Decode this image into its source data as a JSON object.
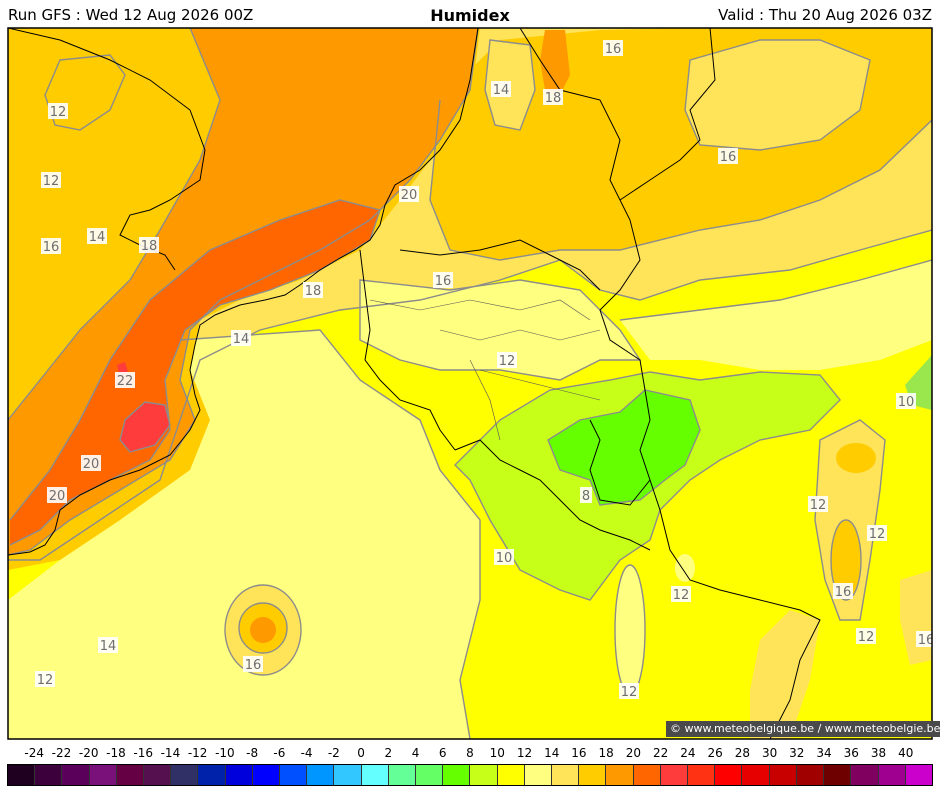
{
  "header": {
    "run": "Run GFS : Wed 12 Aug 2026 00Z",
    "title": "Humidex",
    "valid": "Valid : Thu 20 Aug 2026 03Z"
  },
  "credit": "© www.meteobelgique.be / www.meteobelgie.be",
  "colors": {
    "c10": "#c8ff19",
    "c12": "#ffff00",
    "c14": "#ffff80",
    "c16": "#ffe45a",
    "c18": "#ffcc00",
    "c20": "#ff9900",
    "c22": "#ff6600",
    "c24": "#ff3c3c",
    "c8": "#66ff00",
    "c6": "#99e64d",
    "contour": "#8c8c8c",
    "border": "#000000"
  },
  "contour_labels": [
    {
      "text": "12"
    },
    {
      "text": "12"
    },
    {
      "text": "14"
    },
    {
      "text": "16"
    },
    {
      "text": "18"
    },
    {
      "text": "14"
    },
    {
      "text": "18"
    },
    {
      "text": "16"
    },
    {
      "text": "16"
    },
    {
      "text": "20"
    },
    {
      "text": "16"
    },
    {
      "text": "18"
    },
    {
      "text": "14"
    },
    {
      "text": "22"
    },
    {
      "text": "20"
    },
    {
      "text": "20"
    },
    {
      "text": "12"
    },
    {
      "text": "10"
    },
    {
      "text": "8"
    },
    {
      "text": "10"
    },
    {
      "text": "12"
    },
    {
      "text": "12"
    },
    {
      "text": "16"
    },
    {
      "text": "12"
    },
    {
      "text": "12"
    },
    {
      "text": "14"
    },
    {
      "text": "16"
    },
    {
      "text": "12"
    },
    {
      "text": "12"
    },
    {
      "text": "16"
    }
  ],
  "legend": {
    "ticks": [
      "-24",
      "-22",
      "-20",
      "-18",
      "-16",
      "-14",
      "-12",
      "-10",
      "-8",
      "-6",
      "-4",
      "-2",
      "0",
      "2",
      "4",
      "6",
      "8",
      "10",
      "12",
      "14",
      "16",
      "18",
      "20",
      "22",
      "24",
      "26",
      "28",
      "30",
      "32",
      "34",
      "36",
      "38",
      "40"
    ],
    "colors": [
      "#200020",
      "#3c003c",
      "#5a005a",
      "#7a107a",
      "#660044",
      "#551050",
      "#303066",
      "#0022aa",
      "#0000dd",
      "#0000ff",
      "#0050ff",
      "#0096ff",
      "#32c8ff",
      "#64ffff",
      "#64ff96",
      "#64ff64",
      "#66ff00",
      "#c8ff19",
      "#ffff00",
      "#ffff80",
      "#ffe45a",
      "#ffcc00",
      "#ff9900",
      "#ff6600",
      "#ff3c3c",
      "#ff3214",
      "#ff0000",
      "#e60000",
      "#c80000",
      "#a00000",
      "#6e0000",
      "#800060",
      "#a00090",
      "#cc00cc"
    ]
  }
}
